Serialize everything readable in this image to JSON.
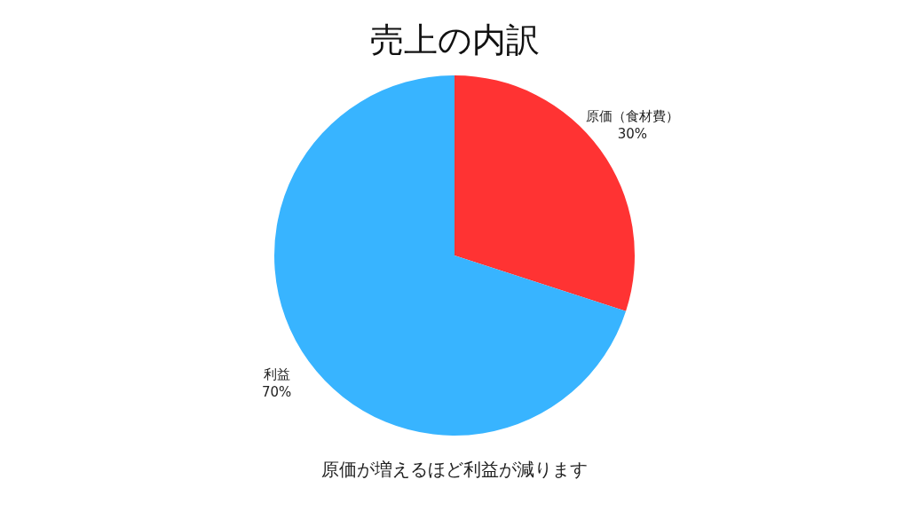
{
  "chart_data": {
    "type": "pie",
    "title": "売上の内訳",
    "categories": [
      "原価（食材費）",
      "利益"
    ],
    "values": [
      30,
      70
    ],
    "colors": [
      "#ff3333",
      "#38b4ff"
    ],
    "value_labels": [
      "30%",
      "70%"
    ],
    "legend": false,
    "annotations": [
      "原価が増えるほど利益が減ります"
    ]
  }
}
